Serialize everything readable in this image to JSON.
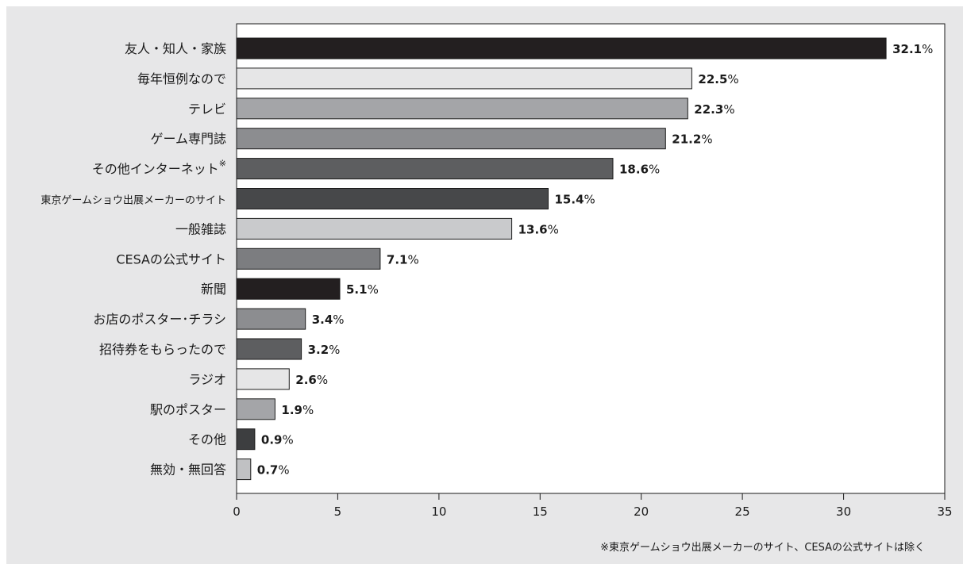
{
  "chart_data": {
    "type": "bar",
    "orientation": "horizontal",
    "categories": [
      "友人・知人・家族",
      "毎年恒例なので",
      "テレビ",
      "ゲーム専門誌",
      "その他インターネット",
      "東京ゲームショウ出展メーカーのサイト",
      "一般雑誌",
      "CESAの公式サイト",
      "新聞",
      "お店のポスター･チラシ",
      "招待券をもらったので",
      "ラジオ",
      "駅のポスター",
      "その他",
      "無効・無回答"
    ],
    "category_notes": [
      "",
      "",
      "",
      "",
      "※",
      "",
      "",
      "",
      "",
      "",
      "",
      "",
      "",
      "",
      ""
    ],
    "values": [
      32.1,
      22.5,
      22.3,
      21.2,
      18.6,
      15.4,
      13.6,
      7.1,
      5.1,
      3.4,
      3.2,
      2.6,
      1.9,
      0.9,
      0.7
    ],
    "value_labels": [
      "32.1",
      "22.5",
      "22.3",
      "21.2",
      "18.6",
      "15.4",
      "13.6",
      "7.1",
      "5.1",
      "3.4",
      "3.2",
      "2.6",
      "1.9",
      "0.9",
      "0.7"
    ],
    "value_unit": "%",
    "bar_colors": [
      "#231f20",
      "#e6e6e7",
      "#a4a5a8",
      "#8c8d90",
      "#5d5e60",
      "#47484a",
      "#c9cacc",
      "#7c7d80",
      "#231f20",
      "#8c8d90",
      "#5d5e60",
      "#e6e6e7",
      "#a4a5a8",
      "#3d3e40",
      "#c0c1c3"
    ],
    "xlim": [
      0,
      35
    ],
    "x_ticks": [
      "0",
      "5",
      "10",
      "15",
      "20",
      "25",
      "30",
      "35"
    ],
    "grid": false,
    "footnote": "※東京ゲームショウ出展メーカーのサイト、CESAの公式サイトは除く"
  }
}
